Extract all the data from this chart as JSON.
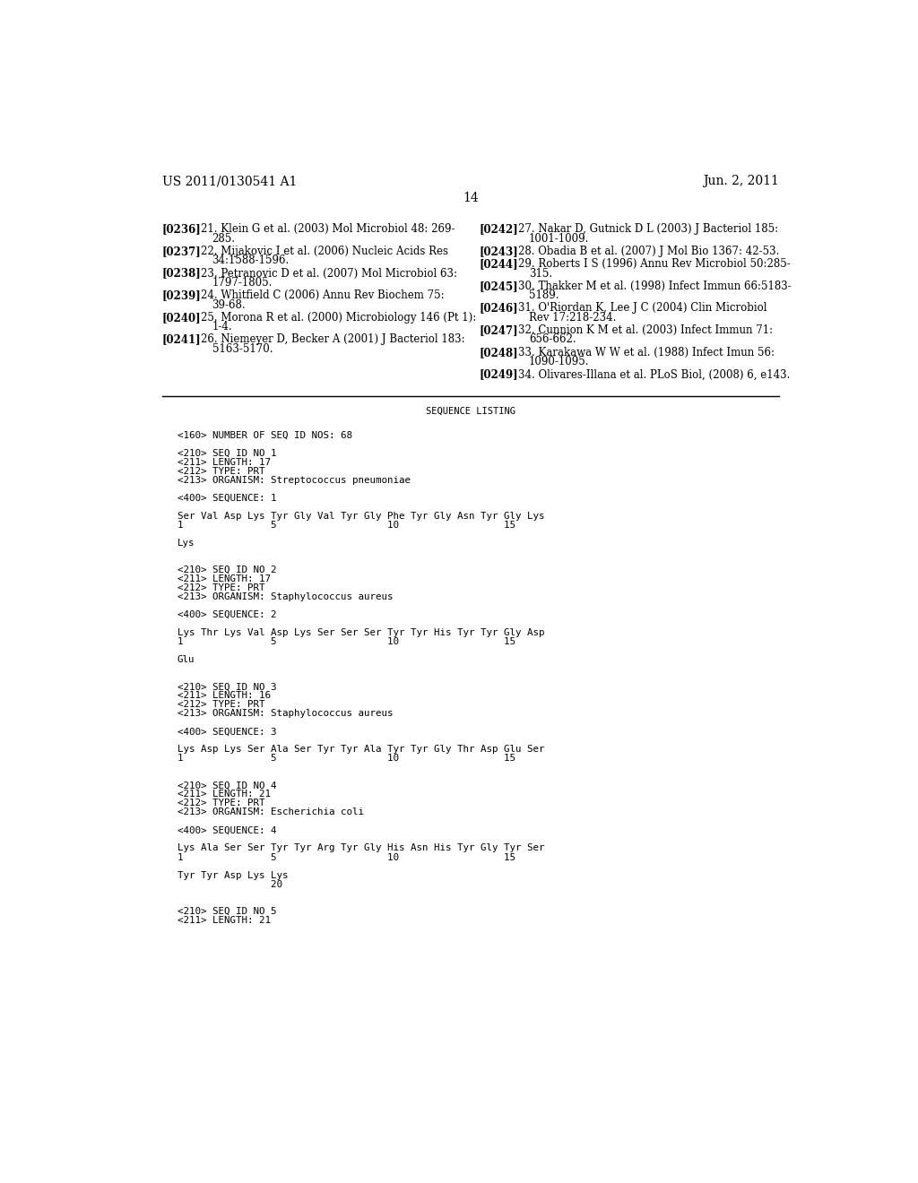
{
  "header_left": "US 2011/0130541 A1",
  "header_right": "Jun. 2, 2011",
  "page_number": "14",
  "background_color": "#ffffff",
  "text_color": "#000000",
  "references_left": [
    {
      "tag": "[0236]",
      "line1": "21. Klein G et al. (2003) Mol Microbiol 48: 269-",
      "line2": "285."
    },
    {
      "tag": "[0237]",
      "line1": "22. Mijakovic I et al. (2006) Nucleic Acids Res",
      "line2": "34:1588-1596."
    },
    {
      "tag": "[0238]",
      "line1": "23. Petranovic D et al. (2007) Mol Microbiol 63:",
      "line2": "1797-1805."
    },
    {
      "tag": "[0239]",
      "line1": "24. Whitfield C (2006) Annu Rev Biochem 75:",
      "line2": "39-68."
    },
    {
      "tag": "[0240]",
      "line1": "25. Morona R et al. (2000) Microbiology 146 (Pt 1):",
      "line2": "1-4."
    },
    {
      "tag": "[0241]",
      "line1": "26. Niemeyer D, Becker A (2001) J Bacteriol 183:",
      "line2": "5163-5170."
    }
  ],
  "references_right": [
    {
      "tag": "[0242]",
      "line1": "27. Nakar D, Gutnick D L (2003) J Bacteriol 185:",
      "line2": "1001-1009."
    },
    {
      "tag": "[0243]",
      "line1": "28. Obadia B et al. (2007) J Mol Bio 1367: 42-53.",
      "line2": null
    },
    {
      "tag": "[0244]",
      "line1": "29. Roberts I S (1996) Annu Rev Microbiol 50:285-",
      "line2": "315."
    },
    {
      "tag": "[0245]",
      "line1": "30. Thakker M et al. (1998) Infect Immun 66:5183-",
      "line2": "5189."
    },
    {
      "tag": "[0246]",
      "line1": "31. O'Riordan K, Lee J C (2004) Clin Microbiol",
      "line2": "Rev 17:218-234."
    },
    {
      "tag": "[0247]",
      "line1": "32. Cunnion K M et al. (2003) Infect Immun 71:",
      "line2": "656-662."
    },
    {
      "tag": "[0248]",
      "line1": "33. Karakawa W W et al. (1988) Infect Imun 56:",
      "line2": "1090-1095."
    },
    {
      "tag": "[0249]",
      "line1": "34. Olivares-Illana et al. PLoS Biol, (2008) 6, e143.",
      "line2": null
    }
  ],
  "sequence_listing_title": "SEQUENCE LISTING",
  "sequence_listing_lines": [
    {
      "text": "<160> NUMBER OF SEQ ID NOS: 68",
      "blank_before": 1
    },
    {
      "text": "<210> SEQ ID NO 1",
      "blank_before": 1
    },
    {
      "text": "<211> LENGTH: 17",
      "blank_before": 0
    },
    {
      "text": "<212> TYPE: PRT",
      "blank_before": 0
    },
    {
      "text": "<213> ORGANISM: Streptococcus pneumoniae",
      "blank_before": 0
    },
    {
      "text": "<400> SEQUENCE: 1",
      "blank_before": 1
    },
    {
      "text": "Ser Val Asp Lys Tyr Gly Val Tyr Gly Phe Tyr Gly Asn Tyr Gly Lys",
      "blank_before": 1
    },
    {
      "text": "1               5                   10                  15",
      "blank_before": 0
    },
    {
      "text": "Lys",
      "blank_before": 1
    },
    {
      "text": "<210> SEQ ID NO 2",
      "blank_before": 2
    },
    {
      "text": "<211> LENGTH: 17",
      "blank_before": 0
    },
    {
      "text": "<212> TYPE: PRT",
      "blank_before": 0
    },
    {
      "text": "<213> ORGANISM: Staphylococcus aureus",
      "blank_before": 0
    },
    {
      "text": "<400> SEQUENCE: 2",
      "blank_before": 1
    },
    {
      "text": "Lys Thr Lys Val Asp Lys Ser Ser Ser Tyr Tyr His Tyr Tyr Gly Asp",
      "blank_before": 1
    },
    {
      "text": "1               5                   10                  15",
      "blank_before": 0
    },
    {
      "text": "Glu",
      "blank_before": 1
    },
    {
      "text": "<210> SEQ ID NO 3",
      "blank_before": 2
    },
    {
      "text": "<211> LENGTH: 16",
      "blank_before": 0
    },
    {
      "text": "<212> TYPE: PRT",
      "blank_before": 0
    },
    {
      "text": "<213> ORGANISM: Staphylococcus aureus",
      "blank_before": 0
    },
    {
      "text": "<400> SEQUENCE: 3",
      "blank_before": 1
    },
    {
      "text": "Lys Asp Lys Ser Ala Ser Tyr Tyr Ala Tyr Tyr Gly Thr Asp Glu Ser",
      "blank_before": 1
    },
    {
      "text": "1               5                   10                  15",
      "blank_before": 0
    },
    {
      "text": "<210> SEQ ID NO 4",
      "blank_before": 2
    },
    {
      "text": "<211> LENGTH: 21",
      "blank_before": 0
    },
    {
      "text": "<212> TYPE: PRT",
      "blank_before": 0
    },
    {
      "text": "<213> ORGANISM: Escherichia coli",
      "blank_before": 0
    },
    {
      "text": "<400> SEQUENCE: 4",
      "blank_before": 1
    },
    {
      "text": "Lys Ala Ser Ser Tyr Tyr Arg Tyr Gly His Asn His Tyr Gly Tyr Ser",
      "blank_before": 1
    },
    {
      "text": "1               5                   10                  15",
      "blank_before": 0
    },
    {
      "text": "Tyr Tyr Asp Lys Lys",
      "blank_before": 1
    },
    {
      "text": "                20",
      "blank_before": 0
    },
    {
      "text": "<210> SEQ ID NO 5",
      "blank_before": 2
    },
    {
      "text": "<211> LENGTH: 21",
      "blank_before": 0
    }
  ]
}
